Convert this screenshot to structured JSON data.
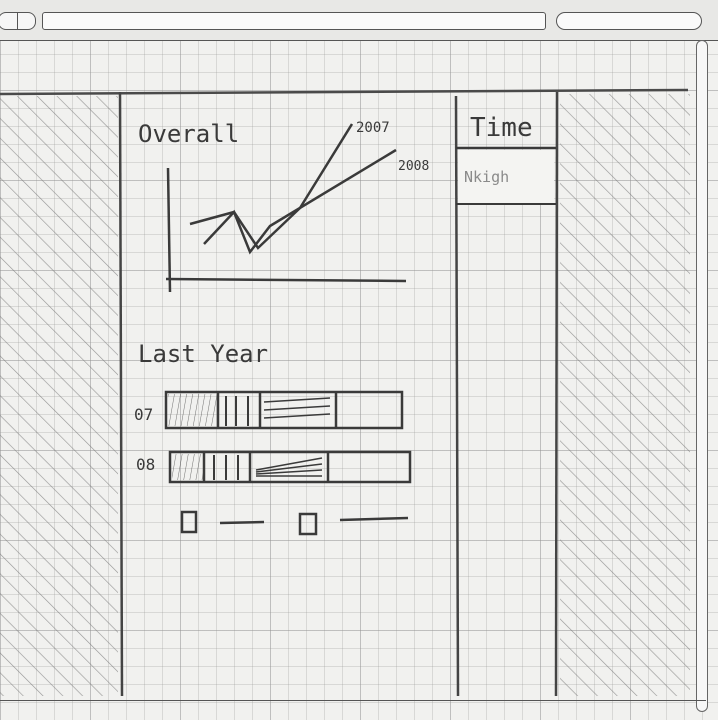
{
  "widget_overall": {
    "title": "Overall",
    "legend": [
      "2007",
      "2008"
    ]
  },
  "widget_last_year": {
    "title": "Last Year",
    "rows": [
      {
        "label": "07"
      },
      {
        "label": "08"
      }
    ]
  },
  "sidebar_right": {
    "title": "Time",
    "dropdown_value": "Nkigh"
  },
  "colors": {
    "pencil": "#3a3a3a",
    "paper": "#f1f1ef",
    "hatch": "#7a7a7a"
  }
}
